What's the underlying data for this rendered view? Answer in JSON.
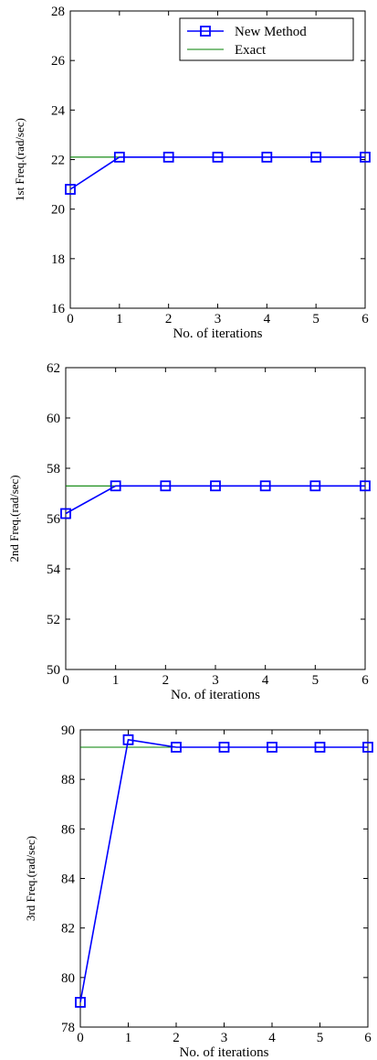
{
  "chart_data": [
    {
      "type": "line",
      "xlabel": "No. of iterations",
      "ylabel": "1st Freq.(rad/sec)",
      "xlim": [
        0,
        6
      ],
      "ylim": [
        16,
        28
      ],
      "xticks": [
        "0",
        "1",
        "2",
        "3",
        "4",
        "5",
        "6"
      ],
      "yticks": [
        "16",
        "18",
        "20",
        "22",
        "24",
        "26",
        "28"
      ],
      "grid": false,
      "legend": "top-right",
      "series": [
        {
          "name": "New Method",
          "color": "#0000ff",
          "marker": "square",
          "x": [
            0,
            1,
            2,
            3,
            4,
            5,
            6
          ],
          "y": [
            20.8,
            22.1,
            22.1,
            22.1,
            22.1,
            22.1,
            22.1
          ]
        },
        {
          "name": "Exact",
          "color": "#008000",
          "marker": "none",
          "x": [
            0,
            6
          ],
          "y": [
            22.1,
            22.1
          ]
        }
      ]
    },
    {
      "type": "line",
      "xlabel": "No. of iterations",
      "ylabel": "2nd Freq.(rad/sec)",
      "xlim": [
        0,
        6
      ],
      "ylim": [
        50,
        62
      ],
      "xticks": [
        "0",
        "1",
        "2",
        "3",
        "4",
        "5",
        "6"
      ],
      "yticks": [
        "50",
        "52",
        "54",
        "56",
        "58",
        "60",
        "62"
      ],
      "grid": false,
      "series": [
        {
          "name": "",
          "color": "#0000ff",
          "marker": "square",
          "x": [
            0,
            1,
            2,
            3,
            4,
            5,
            6
          ],
          "y": [
            56.2,
            57.3,
            57.3,
            57.3,
            57.3,
            57.3,
            57.3
          ]
        },
        {
          "name": "",
          "color": "#008000",
          "marker": "none",
          "x": [
            0,
            6
          ],
          "y": [
            57.3,
            57.3
          ]
        }
      ]
    },
    {
      "type": "line",
      "xlabel": "No. of iterations",
      "ylabel": "3rd Freq.(rad/sec)",
      "xlim": [
        0,
        6
      ],
      "ylim": [
        78,
        90
      ],
      "xticks": [
        "0",
        "1",
        "2",
        "3",
        "4",
        "5",
        "6"
      ],
      "yticks": [
        "78",
        "80",
        "82",
        "84",
        "86",
        "88",
        "90"
      ],
      "grid": false,
      "series": [
        {
          "name": "",
          "color": "#0000ff",
          "marker": "square",
          "x": [
            0,
            1,
            2,
            3,
            4,
            5,
            6
          ],
          "y": [
            79.0,
            89.6,
            89.3,
            89.3,
            89.3,
            89.3,
            89.3
          ]
        },
        {
          "name": "",
          "color": "#008000",
          "marker": "none",
          "x": [
            0,
            6
          ],
          "y": [
            89.3,
            89.3
          ]
        }
      ]
    }
  ]
}
